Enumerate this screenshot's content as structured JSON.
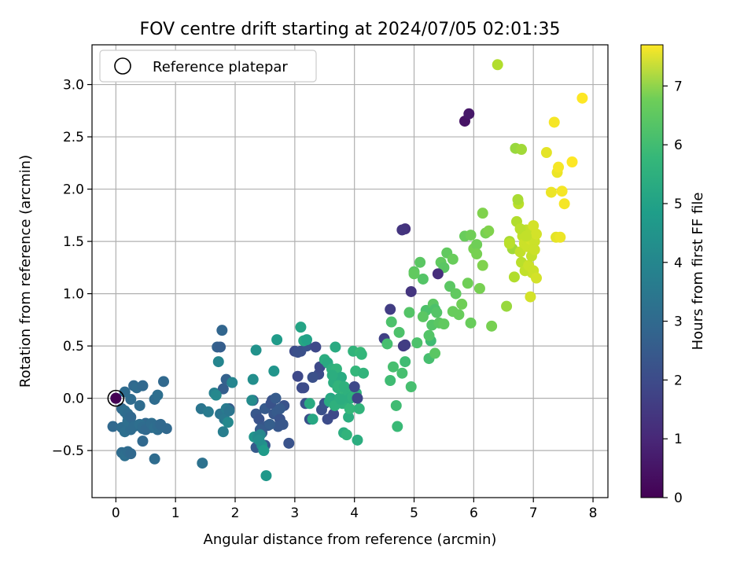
{
  "chart_data": {
    "type": "scatter",
    "title": "FOV centre drift starting at 2024/07/05 02:01:35",
    "xlabel": "Angular distance from reference (arcmin)",
    "ylabel": "Rotation from reference (arcmin)",
    "xlim": [
      -0.4,
      8.25
    ],
    "ylim": [
      -0.95,
      3.38
    ],
    "xticks": [
      "0",
      "1",
      "2",
      "3",
      "4",
      "5",
      "6",
      "7",
      "8"
    ],
    "yticks": [
      "−0.5",
      "0.0",
      "0.5",
      "1.0",
      "1.5",
      "2.0",
      "2.5",
      "3.0"
    ],
    "grid": true,
    "legend": {
      "position": "top-left",
      "label": "Reference platepar"
    },
    "reference_point": [
      0,
      0
    ],
    "colorbar": {
      "label": "Hours from first FF file",
      "colormap": "viridis",
      "range": [
        0,
        7.7
      ],
      "ticks": [
        "0",
        "1",
        "2",
        "3",
        "4",
        "5",
        "6",
        "7"
      ]
    },
    "series": [
      {
        "x": [
          0.0,
          -0.05,
          0.1,
          0.15,
          0.25,
          0.3,
          0.35,
          0.45,
          0.55,
          0.6,
          0.7,
          0.85,
          0.15,
          0.2,
          0.4,
          0.5,
          0.65,
          0.7,
          0.8,
          0.1,
          0.15,
          0.2,
          0.25,
          0.3,
          0.35,
          0.45,
          0.5,
          0.55,
          0.6,
          0.7,
          0.1,
          0.15,
          0.2,
          0.25,
          0.45,
          0.65,
          0.15,
          0.2,
          0.25,
          0.3,
          0.4,
          0.45,
          0.5,
          0.6,
          0.65,
          0.7,
          0.75
        ],
        "y": [
          0.0,
          -0.27,
          -0.28,
          -0.32,
          -0.3,
          0.12,
          0.1,
          0.12,
          -0.25,
          -0.28,
          -0.27,
          -0.29,
          0.06,
          -0.22,
          -0.07,
          -0.25,
          -0.01,
          0.03,
          0.16,
          -0.52,
          -0.55,
          -0.51,
          -0.53,
          -0.27,
          -0.26,
          -0.29,
          -0.24,
          -0.27,
          -0.24,
          -0.3,
          -0.1,
          -0.13,
          -0.17,
          -0.01,
          -0.41,
          -0.58,
          -0.12,
          -0.15,
          -0.18,
          -0.27,
          -0.25,
          -0.28,
          -0.3,
          -0.25,
          -0.28,
          -0.26,
          -0.25
        ],
        "color_value": [
          2.6,
          2.6,
          2.7,
          2.8,
          2.7,
          2.6,
          2.7,
          2.6,
          2.7,
          2.8,
          2.7,
          2.6,
          2.7,
          2.8,
          2.7,
          2.6,
          2.7,
          2.8,
          2.6,
          2.7,
          2.8,
          2.7,
          2.6,
          2.7,
          2.8,
          2.7,
          2.6,
          2.7,
          2.8,
          2.7,
          2.6,
          2.7,
          2.8,
          2.7,
          2.6,
          2.7,
          2.8,
          2.7,
          2.6,
          2.7,
          2.8,
          2.7,
          2.6,
          2.7,
          2.8,
          2.7,
          2.6
        ]
      },
      {
        "x": [
          1.43,
          1.45,
          1.55,
          1.65,
          1.7,
          1.75,
          1.78,
          1.8,
          1.85,
          1.9,
          1.8,
          1.72,
          1.68,
          1.75,
          1.82,
          1.88,
          1.95,
          1.85,
          1.9
        ],
        "y": [
          -0.1,
          -0.62,
          -0.13,
          0.05,
          0.49,
          0.49,
          0.65,
          0.09,
          0.18,
          -0.1,
          -0.32,
          0.35,
          0.03,
          -0.15,
          -0.2,
          -0.23,
          0.15,
          -0.1,
          -0.12
        ],
        "color_value": [
          3.0,
          2.9,
          3.2,
          3.4,
          2.4,
          2.3,
          2.5,
          2.3,
          2.4,
          2.2,
          3.3,
          3.5,
          3.6,
          3.0,
          3.1,
          3.6,
          3.5,
          3.2,
          3.0
        ]
      },
      {
        "x": [
          2.3,
          2.35,
          2.4,
          2.45,
          2.5,
          2.6,
          2.65,
          2.7,
          2.75,
          2.8,
          2.9,
          2.35,
          2.45,
          2.55,
          2.62,
          2.68,
          2.72,
          2.82,
          2.42,
          2.5,
          2.58,
          2.75
        ],
        "y": [
          -0.02,
          -0.15,
          -0.2,
          -0.28,
          -0.1,
          -0.05,
          -0.15,
          -0.13,
          -0.2,
          -0.25,
          -0.43,
          -0.47,
          -0.33,
          -0.26,
          -0.02,
          0.0,
          -0.27,
          -0.07,
          -0.3,
          -0.45,
          -0.25,
          -0.1
        ],
        "color_value": [
          2.2,
          2.1,
          2.0,
          2.1,
          2.2,
          2.0,
          2.1,
          2.2,
          2.0,
          2.1,
          2.0,
          2.2,
          2.3,
          2.1,
          2.0,
          2.2,
          2.1,
          2.0,
          2.2,
          2.1,
          2.3,
          2.2
        ]
      },
      {
        "x": [
          2.3,
          2.32,
          2.35,
          2.38,
          2.42,
          2.45,
          2.48,
          2.52,
          2.65,
          2.7,
          2.28,
          2.4
        ],
        "y": [
          0.18,
          -0.37,
          0.46,
          -0.37,
          -0.35,
          -0.45,
          -0.5,
          -0.74,
          0.26,
          0.56,
          -0.02,
          -0.4
        ],
        "color_value": [
          3.8,
          4.0,
          3.9,
          3.7,
          3.6,
          3.9,
          4.2,
          4.1,
          4.0,
          4.2,
          3.7,
          3.8
        ]
      },
      {
        "x": [
          3.0,
          3.05,
          3.1,
          3.15,
          3.2,
          3.25,
          3.35,
          3.4,
          3.45,
          3.5,
          3.55,
          3.65,
          3.05,
          3.12,
          3.18,
          3.3,
          3.42
        ],
        "y": [
          0.45,
          0.21,
          0.45,
          0.1,
          0.5,
          -0.2,
          0.49,
          0.23,
          -0.11,
          -0.05,
          -0.2,
          -0.15,
          0.44,
          0.1,
          -0.05,
          0.2,
          0.3
        ],
        "color_value": [
          1.8,
          1.7,
          1.9,
          1.8,
          2.0,
          1.9,
          1.7,
          1.8,
          1.9,
          2.0,
          1.8,
          1.7,
          1.9,
          1.8,
          2.0,
          1.9,
          1.7
        ]
      },
      {
        "x": [
          3.1,
          3.15,
          3.2,
          3.25,
          3.3,
          3.5,
          3.55,
          3.6,
          3.62,
          3.65,
          3.68,
          3.7,
          3.72,
          3.75,
          3.78,
          3.8,
          3.82,
          3.85,
          3.88,
          3.9,
          3.92,
          3.95,
          3.98,
          4.0,
          4.02,
          4.05,
          4.08,
          4.1,
          4.12,
          4.15,
          3.58,
          3.63,
          3.67,
          3.73,
          3.77,
          3.83,
          3.87,
          3.93,
          3.97,
          4.03
        ],
        "y": [
          0.68,
          0.55,
          0.56,
          -0.05,
          -0.2,
          0.37,
          0.34,
          0.0,
          0.28,
          0.15,
          0.49,
          0.28,
          0.1,
          0.0,
          0.2,
          -0.05,
          -0.33,
          0.05,
          0.02,
          -0.18,
          -0.1,
          0.02,
          0.45,
          0.04,
          0.26,
          -0.4,
          -0.1,
          0.44,
          0.42,
          0.24,
          -0.03,
          0.22,
          -0.07,
          0.12,
          -0.01,
          0.11,
          -0.35,
          0.0,
          0.01,
          0.05
        ],
        "color_value": [
          4.5,
          4.6,
          4.4,
          4.7,
          4.6,
          4.8,
          4.7,
          4.6,
          4.9,
          4.8,
          4.7,
          5.0,
          4.9,
          4.8,
          4.7,
          4.9,
          4.8,
          5.0,
          4.9,
          4.8,
          5.1,
          4.9,
          5.0,
          4.9,
          5.1,
          4.8,
          5.0,
          5.2,
          5.1,
          5.0,
          4.7,
          4.8,
          4.9,
          5.0,
          4.8,
          4.9,
          5.0,
          4.8,
          4.9,
          5.0
        ]
      },
      {
        "x": [
          4.0,
          4.05,
          4.5,
          4.6,
          4.82,
          4.85,
          4.95,
          4.8,
          4.85
        ],
        "y": [
          0.11,
          0.0,
          0.57,
          0.85,
          0.5,
          1.62,
          1.02,
          1.61,
          0.51
        ],
        "color_value": [
          1.7,
          1.6,
          1.5,
          1.4,
          1.3,
          1.1,
          1.2,
          1.2,
          1.4
        ]
      },
      {
        "x": [
          4.55,
          4.6,
          4.62,
          4.65,
          4.7,
          4.72,
          4.75,
          4.8,
          4.85,
          4.92,
          4.95,
          5.0,
          5.05,
          5.1,
          5.15,
          5.2,
          5.25,
          5.28,
          5.3,
          5.32,
          5.35,
          5.38,
          5.42,
          5.45,
          5.5,
          5.55,
          5.6,
          5.65,
          5.7,
          5.75,
          5.8,
          5.85,
          5.9,
          5.95,
          6.0,
          6.05,
          6.1,
          6.15,
          6.2,
          6.25,
          6.3,
          6.15,
          6.05,
          5.95,
          5.65,
          5.5,
          5.35,
          5.25,
          5.15,
          5.0
        ],
        "y": [
          0.52,
          0.17,
          0.73,
          0.3,
          -0.07,
          -0.27,
          0.63,
          0.24,
          0.35,
          0.82,
          0.11,
          1.21,
          0.53,
          1.3,
          1.14,
          0.84,
          0.38,
          0.55,
          0.7,
          0.9,
          0.85,
          0.82,
          0.72,
          1.3,
          1.25,
          1.39,
          1.07,
          1.33,
          1.0,
          0.8,
          0.9,
          1.55,
          1.1,
          0.72,
          1.43,
          1.47,
          1.05,
          1.27,
          1.58,
          1.6,
          0.69,
          1.77,
          1.38,
          1.56,
          0.83,
          0.71,
          0.43,
          0.6,
          0.78,
          1.19
        ],
        "color_value": [
          5.4,
          5.3,
          5.5,
          5.4,
          5.3,
          5.2,
          5.5,
          5.4,
          5.3,
          5.6,
          5.4,
          5.7,
          5.5,
          5.7,
          5.6,
          5.5,
          5.4,
          5.3,
          5.6,
          5.7,
          5.5,
          5.6,
          5.7,
          5.8,
          5.7,
          5.8,
          5.7,
          5.9,
          5.8,
          5.9,
          6.0,
          5.9,
          6.0,
          5.9,
          6.1,
          6.0,
          6.1,
          6.2,
          6.1,
          6.2,
          6.1,
          6.2,
          6.1,
          6.0,
          5.9,
          5.8,
          5.7,
          5.6,
          5.7,
          5.8
        ]
      },
      {
        "x": [
          5.85,
          5.92,
          5.4
        ],
        "y": [
          2.65,
          2.72,
          1.19
        ],
        "color_value": [
          0.4,
          0.5,
          1.0
        ]
      },
      {
        "x": [
          6.4,
          6.6,
          6.65,
          6.7,
          6.72,
          6.75,
          6.78,
          6.8,
          6.82,
          6.85,
          6.88,
          6.9,
          6.92,
          6.95,
          6.98,
          7.0,
          7.02,
          7.05,
          6.6,
          6.68,
          6.74,
          6.8,
          6.86,
          6.92,
          6.97,
          7.02,
          6.78,
          6.88,
          6.55
        ],
        "y": [
          3.19,
          1.5,
          1.43,
          2.39,
          1.69,
          1.86,
          1.4,
          1.3,
          1.55,
          1.48,
          1.61,
          1.45,
          1.58,
          1.52,
          1.2,
          1.65,
          1.5,
          1.57,
          1.48,
          1.16,
          1.9,
          2.38,
          1.22,
          1.27,
          1.36,
          1.42,
          1.62,
          1.55,
          0.88
        ],
        "color_value": [
          6.8,
          6.7,
          6.6,
          6.5,
          6.8,
          6.9,
          7.0,
          6.9,
          7.0,
          7.1,
          7.0,
          7.1,
          7.0,
          7.2,
          7.1,
          7.2,
          7.1,
          7.2,
          6.9,
          6.8,
          6.7,
          6.6,
          7.0,
          7.1,
          7.0,
          7.1,
          6.9,
          7.0,
          6.5
        ]
      },
      {
        "x": [
          6.95,
          7.0,
          7.05,
          7.22,
          7.3,
          7.35,
          7.38,
          7.4,
          7.42,
          7.45,
          7.48,
          7.52,
          7.65,
          7.82
        ],
        "y": [
          0.97,
          1.22,
          1.15,
          2.35,
          1.97,
          2.64,
          1.54,
          2.16,
          2.21,
          1.54,
          1.98,
          1.86,
          2.26,
          2.87
        ],
        "color_value": [
          7.2,
          7.1,
          7.2,
          7.4,
          7.5,
          7.6,
          7.4,
          7.5,
          7.6,
          7.5,
          7.6,
          7.6,
          7.7,
          7.7
        ]
      }
    ]
  }
}
